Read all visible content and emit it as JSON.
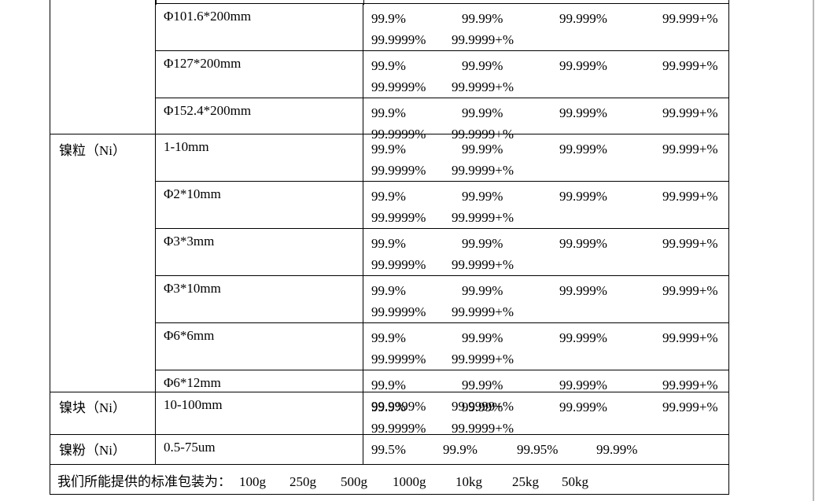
{
  "page": {
    "background": "#ffffff",
    "edge_line_color": "#b7b7b7",
    "table_border_color": "#000000",
    "text_color": "#000000"
  },
  "table": {
    "sections": [
      {
        "category": "",
        "rows": [
          {
            "size": "Φ101.6*200mm",
            "purity1": [
              "99.9%",
              "99.99%",
              "99.999%",
              "99.999+%"
            ],
            "purity2": [
              "99.9999%",
              "99.9999+%"
            ]
          },
          {
            "size": "Φ127*200mm",
            "purity1": [
              "99.9%",
              "99.99%",
              "99.999%",
              "99.999+%"
            ],
            "purity2": [
              "99.9999%",
              "99.9999+%"
            ]
          },
          {
            "size": "Φ152.4*200mm",
            "purity1": [
              "99.9%",
              "99.99%",
              "99.999%",
              "99.999+%"
            ],
            "purity2": [
              "99.9999%",
              "99.9999+%"
            ]
          }
        ]
      },
      {
        "category": "镍粒（Ni）",
        "rows": [
          {
            "size": "1-10mm",
            "purity1": [
              "99.9%",
              "99.99%",
              "99.999%",
              "99.999+%"
            ],
            "purity2": [
              "99.9999%",
              "99.9999+%"
            ]
          },
          {
            "size": "Φ2*10mm",
            "purity1": [
              "99.9%",
              "99.99%",
              "99.999%",
              "99.999+%"
            ],
            "purity2": [
              "99.9999%",
              "99.9999+%"
            ]
          },
          {
            "size": "Φ3*3mm",
            "purity1": [
              "99.9%",
              "99.99%",
              "99.999%",
              "99.999+%"
            ],
            "purity2": [
              "99.9999%",
              "99.9999+%"
            ]
          },
          {
            "size": "Φ3*10mm",
            "purity1": [
              "99.9%",
              "99.99%",
              "99.999%",
              "99.999+%"
            ],
            "purity2": [
              "99.9999%",
              "99.9999+%"
            ]
          },
          {
            "size": "Φ6*6mm",
            "purity1": [
              "99.9%",
              "99.99%",
              "99.999%",
              "99.999+%"
            ],
            "purity2": [
              "99.9999%",
              "99.9999+%"
            ]
          },
          {
            "size": "Φ6*12mm",
            "purity1": [
              "99.9%",
              "99.99%",
              "99.999%",
              "99.999+%"
            ],
            "purity2": [
              "99.9999%",
              "99.9999+%"
            ]
          }
        ]
      },
      {
        "category": "镍块（Ni）",
        "rows": [
          {
            "size": "10-100mm",
            "purity1": [
              "99.9%",
              "99.99%",
              "99.999%",
              "99.999+%"
            ],
            "purity2": [
              "99.9999%",
              "99.9999+%"
            ]
          }
        ]
      },
      {
        "category": "镍粉（Ni）",
        "rows": [
          {
            "size": "0.5-75um",
            "purity1": [
              "99.5%",
              "99.9%",
              "99.95%",
              "99.99%"
            ],
            "purity2": []
          }
        ]
      }
    ],
    "footer": {
      "label": "我们所能提供的标准包装为：",
      "packages": [
        "100g",
        "250g",
        "500g",
        "1000g",
        "10kg",
        "25kg",
        "50kg"
      ]
    }
  }
}
